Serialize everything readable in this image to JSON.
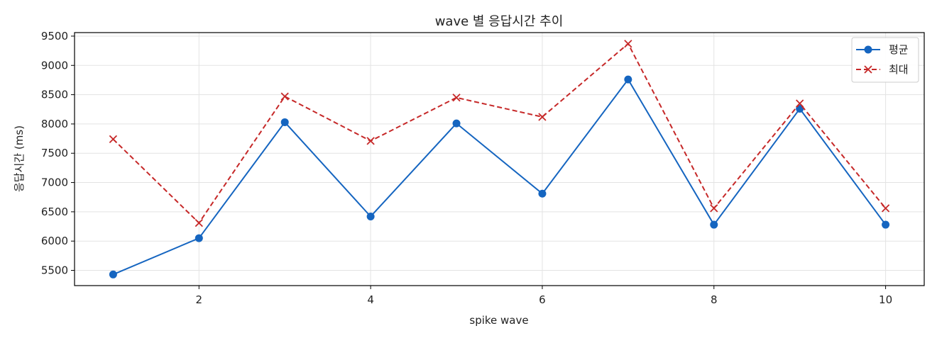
{
  "chart_data": {
    "type": "line",
    "title": "wave 별 응답시간 추이",
    "xlabel": "spike wave",
    "ylabel": "응답시간 (ms)",
    "x": [
      1,
      2,
      3,
      4,
      5,
      6,
      7,
      8,
      9,
      10
    ],
    "xlim": [
      0.55,
      10.45
    ],
    "ylim": [
      5240,
      9560
    ],
    "xticks": [
      2,
      4,
      6,
      8,
      10
    ],
    "yticks": [
      5500,
      6000,
      6500,
      7000,
      7500,
      8000,
      8500,
      9000,
      9500
    ],
    "grid": true,
    "legend_position": "top-right",
    "series": [
      {
        "name": "평균",
        "color": "#1565c0",
        "line_style": "solid",
        "marker": "circle",
        "values": [
          5430,
          6050,
          8030,
          6420,
          8010,
          6810,
          8760,
          6280,
          8260,
          6280
        ]
      },
      {
        "name": "최대",
        "color": "#c62828",
        "line_style": "dashed",
        "marker": "x",
        "values": [
          7740,
          6310,
          8470,
          7710,
          8450,
          8120,
          9370,
          6560,
          8350,
          6560
        ]
      }
    ]
  }
}
